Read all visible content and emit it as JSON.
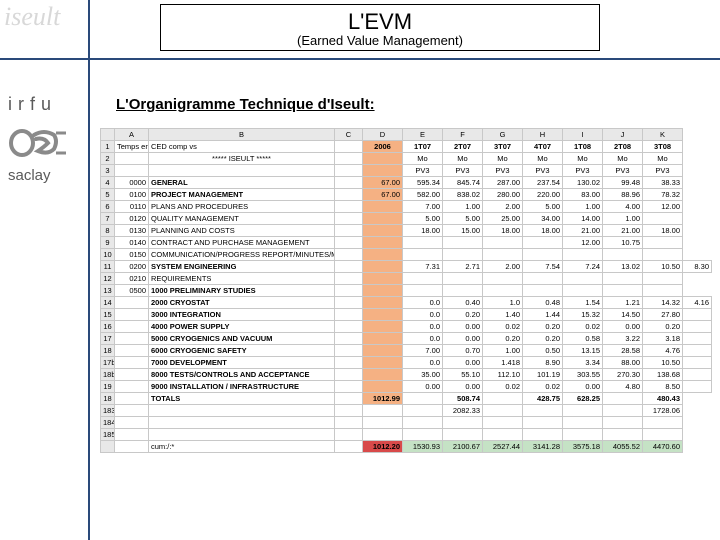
{
  "watermark": "iseult",
  "title": {
    "main": "L'EVM",
    "sub": "(Earned Value Management)"
  },
  "sidebar": {
    "irfu": "irfu",
    "saclay": "saclay"
  },
  "section_title": "L'Organigramme Technique d'Iseult:",
  "sheet": {
    "col_letters": [
      "",
      "A",
      "B",
      "C",
      "D",
      "E",
      "F",
      "G",
      "H",
      "I",
      "J",
      "K"
    ],
    "header_row1_label": "Temps en mois",
    "header_row1_b": "CED comp vs",
    "header_periods": [
      "2006",
      "1T07",
      "2T07",
      "3T07",
      "4T07",
      "1T08",
      "2T08",
      "3T08"
    ],
    "header_row2_center": "***** ISEULT *****",
    "header_row2_vals": [
      "",
      "Mo",
      "Mo",
      "Mo",
      "Mo",
      "Mo",
      "Mo",
      "Mo"
    ],
    "header_row3_vals": [
      "",
      "PV3",
      "PV3",
      "PV3",
      "PV3",
      "PV3",
      "PV3",
      "PV3"
    ],
    "rows": [
      {
        "n": "4",
        "code": "0000",
        "label": "GENERAL",
        "bold": true,
        "d": "67.00",
        "vals": [
          "595.34",
          "845.74",
          "287.00",
          "237.54",
          "130.02",
          "99.48",
          "38.33"
        ]
      },
      {
        "n": "5",
        "code": "0100",
        "label": "PROJECT MANAGEMENT",
        "bold": true,
        "d": "67.00",
        "vals": [
          "582.00",
          "838.02",
          "280.00",
          "220.00",
          "83.00",
          "88.96",
          "78.32"
        ]
      },
      {
        "n": "6",
        "code": "0110",
        "label": "PLANS AND PROCEDURES",
        "d": "",
        "vals": [
          "7.00",
          "1.00",
          "2.00",
          "5.00",
          "1.00",
          "4.00",
          "12.00"
        ]
      },
      {
        "n": "7",
        "code": "0120",
        "label": "QUALITY MANAGEMENT",
        "d": "",
        "vals": [
          "5.00",
          "5.00",
          "25.00",
          "34.00",
          "14.00",
          "1.00",
          ""
        ]
      },
      {
        "n": "8",
        "code": "0130",
        "label": "PLANNING AND COSTS",
        "d": "",
        "vals": [
          "18.00",
          "15.00",
          "18.00",
          "18.00",
          "21.00",
          "21.00",
          "18.00"
        ]
      },
      {
        "n": "9",
        "code": "0140",
        "label": "CONTRACT AND PURCHASE MANAGEMENT",
        "d": "",
        "vals": [
          "",
          "",
          "",
          "",
          "12.00",
          "10.75",
          ""
        ]
      },
      {
        "n": "10",
        "code": "0150",
        "label": "COMMUNICATION/PROGRESS REPORT/MINUTES/MILESTONES",
        "d": "",
        "vals": [
          "",
          "",
          "",
          "",
          "",
          "",
          ""
        ]
      },
      {
        "n": "11",
        "code": "0200",
        "label": "SYSTEM ENGINEERING",
        "bold": true,
        "d": "",
        "vals": [
          "7.31",
          "2.71",
          "2.00",
          "7.54",
          "7.24",
          "13.02",
          "10.50",
          "8.30"
        ]
      },
      {
        "n": "12",
        "code": "0210",
        "label": "REQUIREMENTS",
        "d": "",
        "vals": [
          "",
          "",
          "",
          "",
          "",
          "",
          ""
        ]
      },
      {
        "n": "13",
        "code": "0500",
        "label": "1000 PRELIMINARY STUDIES",
        "bold": true,
        "d": "",
        "vals": [
          "",
          "",
          "",
          "",
          "",
          "",
          ""
        ]
      },
      {
        "n": "14",
        "code": "",
        "label": "2000 CRYOSTAT",
        "bold": true,
        "d": "",
        "vals": [
          "0.0",
          "0.40",
          "1.0",
          "0.48",
          "1.54",
          "1.21",
          "14.32",
          "4.16"
        ]
      },
      {
        "n": "15",
        "code": "",
        "label": "3000 INTEGRATION",
        "bold": true,
        "d": "",
        "vals": [
          "0.0",
          "0.20",
          "1.40",
          "1.44",
          "15.32",
          "14.50",
          "27.80",
          ""
        ]
      },
      {
        "n": "16",
        "code": "",
        "label": "4000 POWER SUPPLY",
        "bold": true,
        "d": "",
        "vals": [
          "0.0",
          "0.00",
          "0.02",
          "0.20",
          "0.02",
          "0.00",
          "0.20",
          ""
        ]
      },
      {
        "n": "17",
        "code": "",
        "label": "5000 CRYOGENICS AND VACUUM",
        "bold": true,
        "d": "",
        "vals": [
          "0.0",
          "0.00",
          "0.20",
          "0.20",
          "0.58",
          "3.22",
          "3.18",
          ""
        ]
      },
      {
        "n": "18",
        "code": "",
        "label": "6000 CRYOGENIC SAFETY",
        "bold": true,
        "d": "",
        "vals": [
          "7.00",
          "0.70",
          "1.00",
          "0.50",
          "13.15",
          "28.58",
          "4.76",
          ""
        ]
      },
      {
        "n": "17b",
        "code": "",
        "label": "7000 DEVELOPMENT",
        "bold": true,
        "d": "",
        "vals": [
          "0.0",
          "0.00",
          "1.418",
          "8.90",
          "3.34",
          "88.00",
          "10.50",
          ""
        ]
      },
      {
        "n": "18b",
        "code": "",
        "label": "8000 TESTS/CONTROLS AND ACCEPTANCE",
        "bold": true,
        "d": "",
        "vals": [
          "35.00",
          "55.10",
          "112.10",
          "101.19",
          "303.55",
          "270.30",
          "138.68",
          ""
        ]
      },
      {
        "n": "19",
        "code": "",
        "label": "9000 INSTALLATION / INFRASTRUCTURE",
        "bold": true,
        "d": "",
        "vals": [
          "0.00",
          "0.00",
          "0.02",
          "0.02",
          "0.00",
          "4.80",
          "8.50",
          ""
        ]
      }
    ],
    "totals_label": "TOTALS",
    "totals": [
      "1012.99",
      "",
      "508.74",
      "",
      "428.75",
      "628.25",
      "",
      "480.43"
    ],
    "sum_right": [
      "2082.33",
      "",
      "",
      "",
      "",
      "1728.06"
    ],
    "cum_label": "cum:/:*",
    "cum_vals": [
      "1012.20",
      "1530.93",
      "2100.67",
      "2527.44",
      "3141.28",
      "3575.18",
      "4055.52",
      "4470.60"
    ]
  }
}
